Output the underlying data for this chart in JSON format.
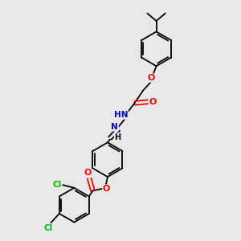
{
  "bg_color": "#e8e8e8",
  "bond_color": "#000000",
  "atom_colors": {
    "O": "#ff0000",
    "N": "#0000cd",
    "Cl": "#00bb00",
    "H": "#000000",
    "C": "#000000"
  },
  "figsize": [
    3.0,
    3.0
  ],
  "dpi": 100
}
